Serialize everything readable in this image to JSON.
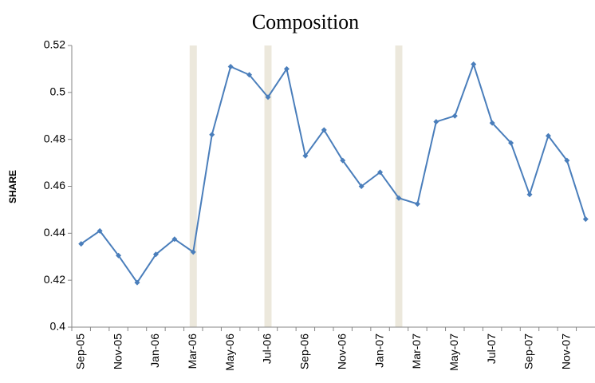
{
  "chart_data": {
    "type": "line",
    "title": "Composition",
    "y_label": "SHARE",
    "categories": [
      "Sep-05",
      null,
      "Nov-05",
      null,
      "Jan-06",
      null,
      "Mar-06",
      null,
      "May-06",
      null,
      "Jul-06",
      null,
      "Sep-06",
      null,
      "Nov-06",
      null,
      "Jan-07",
      null,
      "Mar-07",
      null,
      "May-07",
      null,
      "Jul-07",
      null,
      "Sep-07",
      null,
      "Nov-07",
      null
    ],
    "series": [
      {
        "name": "SHARE",
        "color": "#4a7ebb",
        "values": [
          0.4355,
          0.441,
          0.4305,
          0.419,
          0.431,
          0.4375,
          0.432,
          0.482,
          0.511,
          0.5075,
          0.498,
          0.51,
          0.473,
          0.484,
          0.471,
          0.46,
          0.466,
          0.455,
          0.4525,
          0.4875,
          0.49,
          0.512,
          0.487,
          0.4785,
          0.4565,
          0.4815,
          0.471,
          0.446
        ]
      }
    ],
    "shaded_indices": [
      6,
      10,
      17
    ],
    "shade_color": "#ece8dc",
    "ylim": [
      0.4,
      0.52
    ],
    "yticks": [
      0.4,
      0.42,
      0.44,
      0.46,
      0.48,
      0.5,
      0.52
    ],
    "grid": false
  }
}
